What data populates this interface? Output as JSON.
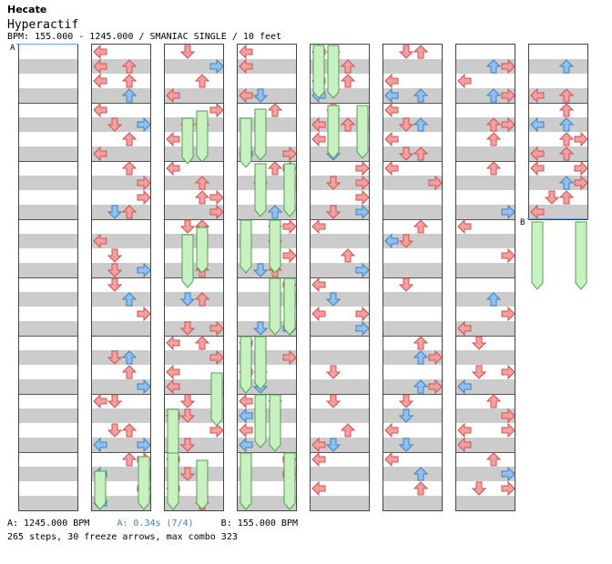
{
  "header": {
    "title": "Hecate",
    "artist": "Hyperactif",
    "meta": "BPM: 155.000 - 1245.000 / SMANIAC SINGLE / 10 feet"
  },
  "markers": [
    {
      "label": "A",
      "col": 0,
      "y": 0
    },
    {
      "label": "B",
      "col": 7,
      "y": 192
    }
  ],
  "footer": {
    "bpm_a": "A: 1245.000 BPM",
    "stop_a": "A: 0.34s (7/4)",
    "bpm_b": "B: 155.000 BPM",
    "stats": "265 steps, 30 freeze arrows, max combo 323"
  },
  "colors": {
    "red": "#f4a0a0",
    "red_stroke": "#d05050",
    "blue": "#90c0f0",
    "blue_stroke": "#4080c0",
    "freeze": "#c8f0c0",
    "freeze_stroke": "#50a050"
  },
  "notes": [
    {
      "c": 0,
      "row": []
    },
    {
      "c": 1,
      "row": [
        [
          0,
          1
        ],
        [
          0,
          2
        ],
        [
          1,
          0
        ],
        [
          1,
          3
        ],
        [
          2,
          1
        ],
        [
          2,
          2
        ],
        [
          3,
          0
        ],
        [
          3,
          3
        ],
        [
          4,
          1
        ],
        [
          4,
          2
        ],
        [
          5,
          3
        ],
        [
          6,
          0
        ],
        [
          6,
          1
        ],
        [
          6,
          3
        ],
        [
          7,
          2
        ],
        [
          8,
          0
        ],
        [
          8,
          2
        ],
        [
          9,
          1
        ],
        [
          9,
          2
        ],
        [
          9,
          3
        ],
        [
          10,
          0
        ],
        [
          10,
          1
        ],
        [
          10,
          2
        ],
        [
          11,
          3
        ],
        [
          12,
          0
        ],
        [
          12,
          2
        ],
        [
          13,
          1
        ],
        [
          13,
          3
        ],
        [
          14,
          0
        ],
        [
          14,
          1
        ],
        [
          14,
          2
        ],
        [
          15,
          3
        ],
        [
          16,
          0
        ],
        [
          16,
          2
        ],
        [
          17,
          1
        ],
        [
          17,
          3
        ],
        [
          18,
          0
        ],
        [
          18,
          2
        ],
        [
          19,
          1
        ],
        [
          19,
          3
        ],
        [
          20,
          0
        ],
        [
          20,
          2
        ],
        [
          21,
          1
        ],
        [
          21,
          3
        ],
        [
          22,
          0
        ],
        [
          22,
          1
        ],
        [
          22,
          2
        ],
        [
          23,
          3
        ],
        [
          24,
          0
        ],
        [
          24,
          2
        ],
        [
          25,
          1
        ],
        [
          25,
          2
        ],
        [
          26,
          1
        ],
        [
          26,
          3
        ],
        [
          27,
          0
        ],
        [
          27,
          2
        ],
        [
          28,
          1
        ],
        [
          28,
          3
        ],
        [
          29,
          0
        ],
        [
          29,
          2
        ],
        [
          30,
          1
        ],
        [
          30,
          3
        ],
        [
          31,
          0
        ],
        [
          31,
          2
        ]
      ]
    }
  ]
}
